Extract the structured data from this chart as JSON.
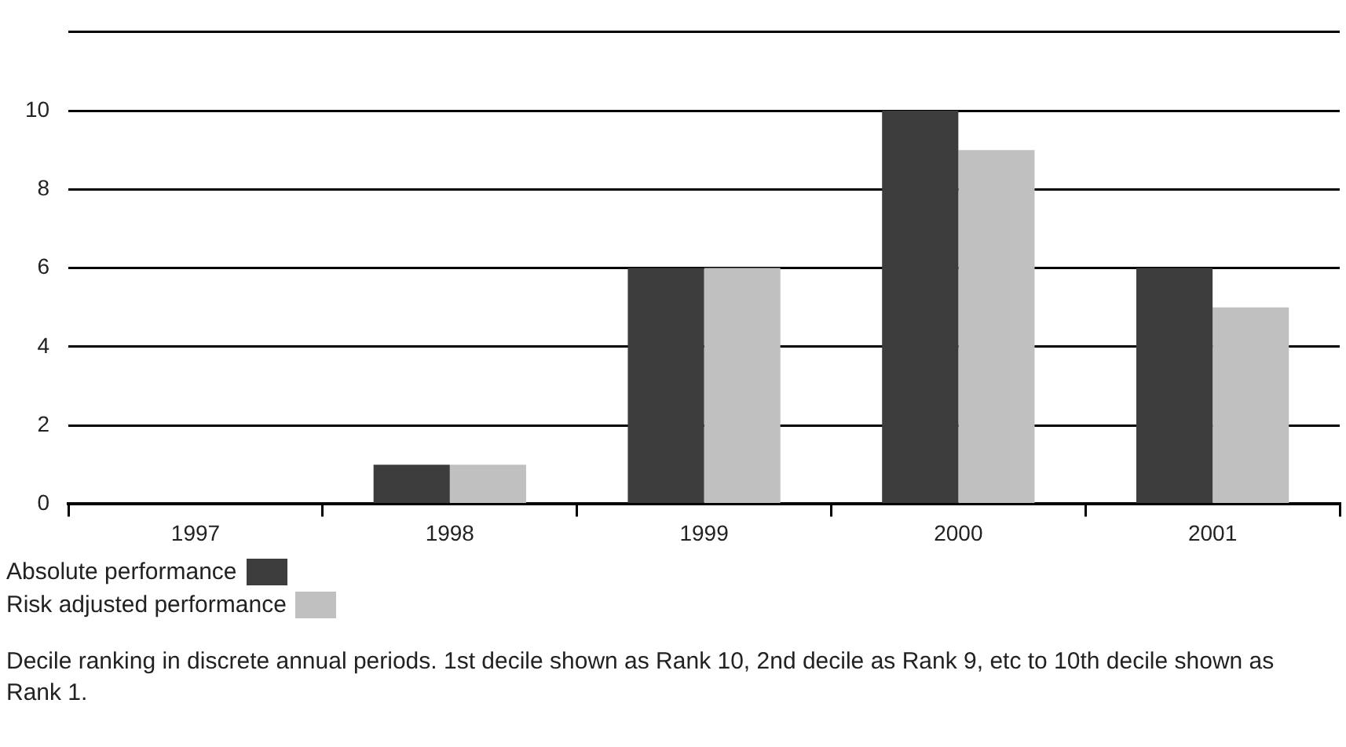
{
  "chart_data": {
    "type": "bar",
    "categories": [
      "1997",
      "1998",
      "1999",
      "2000",
      "2001"
    ],
    "series": [
      {
        "name": "Absolute performance",
        "color": "#3c3c3c",
        "values": [
          0,
          1,
          6,
          10,
          6
        ]
      },
      {
        "name": "Risk adjusted performance",
        "color": "#c0c0c0",
        "values": [
          0,
          1,
          6,
          9,
          5
        ]
      }
    ],
    "ylim": [
      0,
      12
    ],
    "yticks": [
      0,
      2,
      4,
      6,
      8,
      10,
      {
        "value": 12,
        "label": null
      }
    ],
    "grid": "y",
    "legend": "bottom left",
    "annotations": [
      "Decile ranking in discrete annual periods. 1st decile shown as Rank 10, 2nd decile as Rank 9, etc to 10th decile shown as Rank 1."
    ]
  }
}
